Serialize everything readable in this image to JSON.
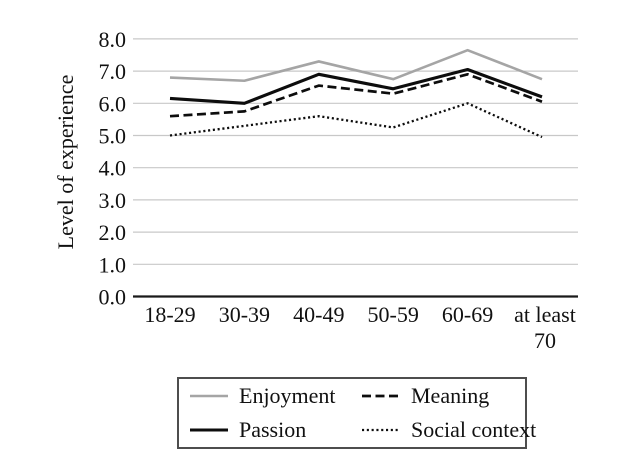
{
  "chart_data": {
    "type": "line",
    "title": "",
    "xlabel": "",
    "ylabel": "Level of experience",
    "categories": [
      "18-29",
      "30-39",
      "40-49",
      "50-59",
      "60-69",
      "at least 70"
    ],
    "series": [
      {
        "name": "Enjoyment",
        "values": [
          6.8,
          6.7,
          7.3,
          6.75,
          7.65,
          6.75
        ],
        "color": "#a5a5a5",
        "style": "solid",
        "width": 2.6
      },
      {
        "name": "Meaning",
        "values": [
          5.6,
          5.75,
          6.55,
          6.3,
          6.9,
          6.05
        ],
        "color": "#0d0d0d",
        "style": "dashed",
        "width": 2.7
      },
      {
        "name": "Passion",
        "values": [
          6.15,
          6.0,
          6.9,
          6.45,
          7.05,
          6.2
        ],
        "color": "#0d0d0d",
        "style": "solid",
        "width": 3.1
      },
      {
        "name": "Social context",
        "values": [
          5.0,
          5.3,
          5.6,
          5.25,
          6.0,
          4.95
        ],
        "color": "#0d0d0d",
        "style": "dotted",
        "width": 2.3
      }
    ],
    "ylim": [
      0.0,
      8.0
    ],
    "ytick_step": 1.0,
    "ytick_labels": [
      "0.0",
      "1.0",
      "2.0",
      "3.0",
      "4.0",
      "5.0",
      "6.0",
      "7.0",
      "8.0"
    ],
    "grid": true,
    "gridline_color": "#c8c8c8",
    "axis_line_color": "#1a1a1a",
    "legend_position": "bottom"
  }
}
